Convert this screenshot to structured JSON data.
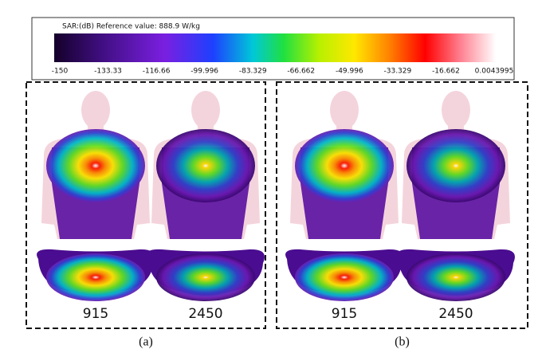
{
  "colorbar": {
    "title": "SAR:(dB) Reference value: 888.9 W/kg",
    "ticks": [
      "-150",
      "-133.33",
      "-116.66",
      "-99.996",
      "-83.329",
      "-66.662",
      "-49.996",
      "-33.329",
      "-16.662",
      "0.0043995"
    ]
  },
  "panels": [
    {
      "caption": "(a)",
      "images": [
        {
          "label": "915"
        },
        {
          "label": "2450"
        }
      ]
    },
    {
      "caption": "(b)",
      "images": [
        {
          "label": "915"
        },
        {
          "label": "2450"
        }
      ]
    }
  ]
}
